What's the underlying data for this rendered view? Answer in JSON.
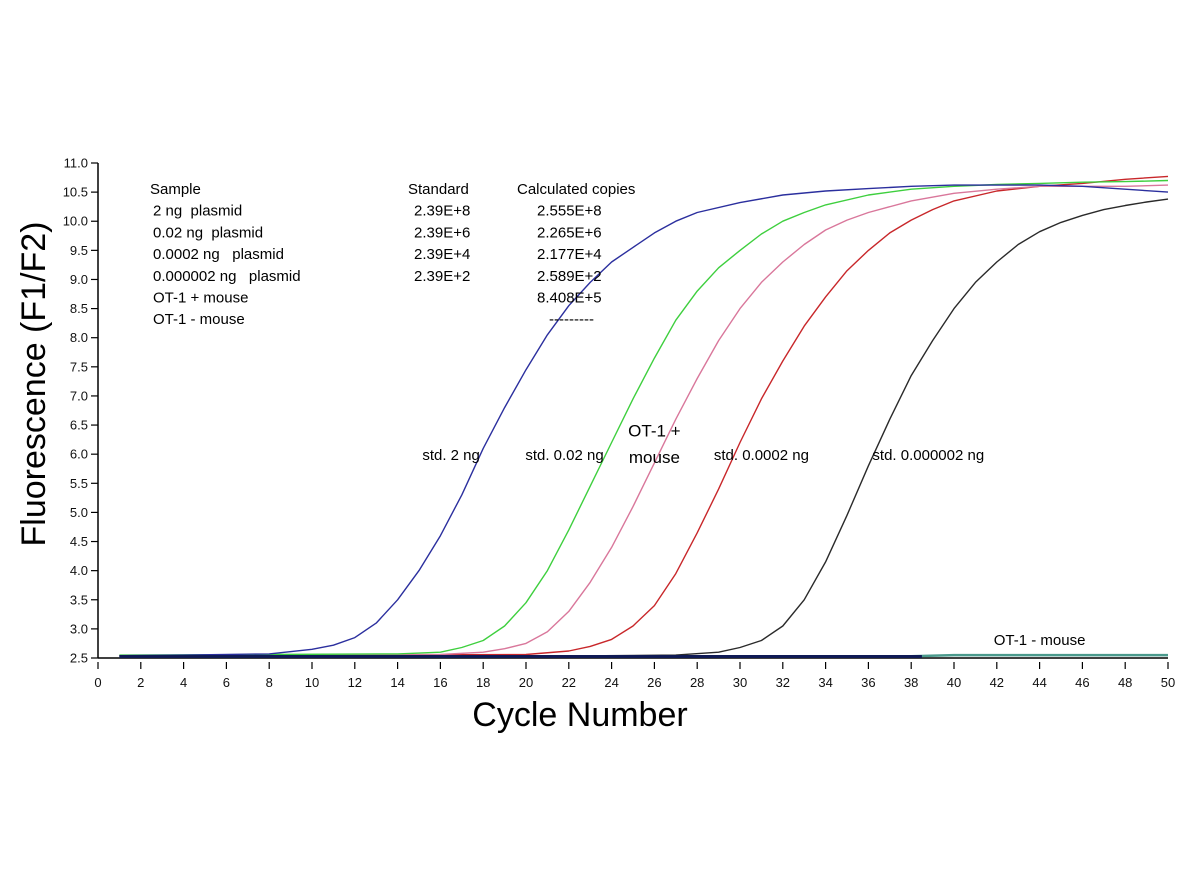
{
  "chart_data": {
    "type": "line",
    "title": "",
    "xlabel": "Cycle Number",
    "ylabel": "Fluorescence (F1/F2)",
    "xlim": [
      0,
      50
    ],
    "ylim": [
      2.5,
      11.0
    ],
    "grid": false,
    "x_ticks": [
      "0",
      "2",
      "4",
      "6",
      "8",
      "10",
      "12",
      "14",
      "16",
      "18",
      "20",
      "22",
      "24",
      "26",
      "28",
      "30",
      "32",
      "34",
      "36",
      "38",
      "40",
      "42",
      "44",
      "46",
      "48",
      "50"
    ],
    "y_ticks": [
      "2.5",
      "3.0",
      "3.5",
      "4.0",
      "4.5",
      "5.0",
      "5.5",
      "6.0",
      "6.5",
      "7.0",
      "7.5",
      "8.0",
      "8.5",
      "9.0",
      "9.5",
      "10.0",
      "10.5",
      "11.0"
    ],
    "series": [
      {
        "name": "std. 2 ng",
        "color": "#2b2f9e",
        "x": [
          1,
          4,
          8,
          10,
          11,
          12,
          13,
          14,
          15,
          16,
          17,
          18,
          19,
          20,
          21,
          22,
          23,
          24,
          25,
          26,
          27,
          28,
          30,
          32,
          34,
          36,
          38,
          40,
          42,
          44,
          46,
          48,
          50
        ],
        "y": [
          2.54,
          2.55,
          2.57,
          2.65,
          2.72,
          2.85,
          3.1,
          3.5,
          4.0,
          4.6,
          5.3,
          6.1,
          6.8,
          7.45,
          8.05,
          8.55,
          8.95,
          9.3,
          9.55,
          9.8,
          10.0,
          10.15,
          10.32,
          10.45,
          10.52,
          10.56,
          10.6,
          10.62,
          10.62,
          10.62,
          10.6,
          10.55,
          10.5
        ]
      },
      {
        "name": "std. 0.02 ng",
        "color": "#3ecf3e",
        "x": [
          1,
          8,
          14,
          16,
          17,
          18,
          19,
          20,
          21,
          22,
          23,
          24,
          25,
          26,
          27,
          28,
          29,
          30,
          31,
          32,
          33,
          34,
          36,
          38,
          40,
          42,
          44,
          46,
          48,
          50
        ],
        "y": [
          2.55,
          2.56,
          2.57,
          2.6,
          2.68,
          2.8,
          3.05,
          3.45,
          4.0,
          4.7,
          5.45,
          6.2,
          6.95,
          7.65,
          8.3,
          8.8,
          9.2,
          9.5,
          9.78,
          10.0,
          10.15,
          10.28,
          10.45,
          10.55,
          10.6,
          10.63,
          10.65,
          10.67,
          10.68,
          10.7
        ]
      },
      {
        "name": "OT-1 + mouse",
        "color": "#d9779b",
        "x": [
          1,
          10,
          16,
          18,
          19,
          20,
          21,
          22,
          23,
          24,
          25,
          26,
          27,
          28,
          29,
          30,
          31,
          32,
          33,
          34,
          35,
          36,
          38,
          40,
          42,
          44,
          46,
          48,
          50
        ],
        "y": [
          2.54,
          2.55,
          2.56,
          2.6,
          2.66,
          2.75,
          2.95,
          3.3,
          3.8,
          4.4,
          5.1,
          5.85,
          6.6,
          7.3,
          7.95,
          8.5,
          8.95,
          9.3,
          9.6,
          9.85,
          10.02,
          10.15,
          10.35,
          10.48,
          10.55,
          10.6,
          10.6,
          10.6,
          10.62
        ]
      },
      {
        "name": "std. 0.0002 ng",
        "color": "#c8272a",
        "x": [
          1,
          12,
          20,
          22,
          23,
          24,
          25,
          26,
          27,
          28,
          29,
          30,
          31,
          32,
          33,
          34,
          35,
          36,
          37,
          38,
          39,
          40,
          42,
          44,
          46,
          48,
          50
        ],
        "y": [
          2.54,
          2.55,
          2.56,
          2.62,
          2.7,
          2.82,
          3.05,
          3.4,
          3.95,
          4.65,
          5.4,
          6.2,
          6.95,
          7.6,
          8.2,
          8.7,
          9.15,
          9.5,
          9.8,
          10.02,
          10.2,
          10.35,
          10.52,
          10.6,
          10.65,
          10.72,
          10.77
        ]
      },
      {
        "name": "std. 0.000002 ng",
        "color": "#2a2a2a",
        "x": [
          1,
          20,
          27,
          29,
          30,
          31,
          32,
          33,
          34,
          35,
          36,
          37,
          38,
          39,
          40,
          41,
          42,
          43,
          44,
          45,
          46,
          47,
          48,
          49,
          50
        ],
        "y": [
          2.52,
          2.53,
          2.55,
          2.6,
          2.68,
          2.8,
          3.05,
          3.5,
          4.15,
          4.95,
          5.8,
          6.6,
          7.35,
          7.95,
          8.5,
          8.95,
          9.3,
          9.6,
          9.82,
          9.98,
          10.1,
          10.2,
          10.27,
          10.33,
          10.38
        ]
      },
      {
        "name": "OT-1 - mouse",
        "color": "#4a9a8c",
        "x": [
          1,
          10,
          20,
          30,
          38,
          40,
          45,
          50
        ],
        "y": [
          2.52,
          2.52,
          2.52,
          2.52,
          2.53,
          2.55,
          2.55,
          2.55
        ]
      }
    ],
    "annotations": [
      {
        "text": "std. 2 ng",
        "x": 16.5,
        "y": 5.9
      },
      {
        "text": "std. 0.02 ng",
        "x": 21.8,
        "y": 5.9
      },
      {
        "text": "OT-1 +",
        "x": 26.0,
        "y": 6.3
      },
      {
        "text": "mouse",
        "x": 26.0,
        "y": 5.85
      },
      {
        "text": "std. 0.0002 ng",
        "x": 31.0,
        "y": 5.9
      },
      {
        "text": "std. 0.000002 ng",
        "x": 38.8,
        "y": 5.9
      },
      {
        "text": "OT-1 - mouse",
        "x": 44.0,
        "y": 2.72
      }
    ],
    "table": {
      "headers": [
        "Sample",
        "Standard",
        "Calculated copies"
      ],
      "rows": [
        [
          "2 ng  plasmid",
          "2.39E+8",
          "2.555E+8"
        ],
        [
          "0.02 ng  plasmid",
          "2.39E+6",
          "2.265E+6"
        ],
        [
          "0.0002 ng   plasmid",
          "2.39E+4",
          "2.177E+4"
        ],
        [
          "0.000002 ng   plasmid",
          "2.39E+2",
          "2.589E+2"
        ],
        [
          "OT-1 + mouse",
          "",
          "8.408E+5"
        ],
        [
          "OT-1 - mouse",
          "",
          "---------"
        ]
      ]
    }
  }
}
